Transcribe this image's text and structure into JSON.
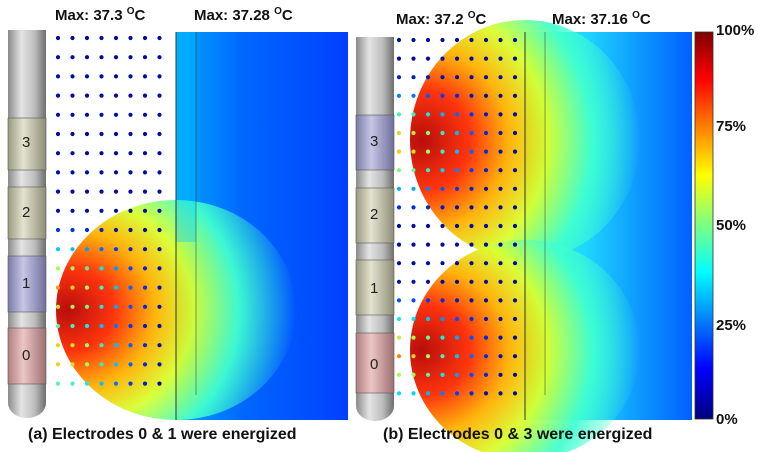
{
  "panels": [
    {
      "id": "a",
      "dots_max_label": "Max: 37.3",
      "map_max_label": "Max: 37.28",
      "unit_super": "O",
      "unit_letter": "C",
      "electrodes": [
        "3",
        "2",
        "1",
        "0"
      ],
      "energized": [
        "0",
        "1"
      ],
      "caption": "(a) Electrodes 0 & 1 were energized"
    },
    {
      "id": "b",
      "dots_max_label": "Max: 37.2",
      "map_max_label": "Max: 37.16",
      "unit_super": "O",
      "unit_letter": "C",
      "electrodes": [
        "3",
        "2",
        "1",
        "0"
      ],
      "energized": [
        "0",
        "3"
      ],
      "caption": "(b) Electrodes 0 & 3 were energized"
    }
  ],
  "colorbar": {
    "ticks": [
      "100%",
      "75%",
      "50%",
      "25%",
      "0%"
    ],
    "colors": [
      "#7f0000",
      "#ff0000",
      "#ffff00",
      "#00ffff",
      "#0000ff",
      "#00007f"
    ]
  }
}
